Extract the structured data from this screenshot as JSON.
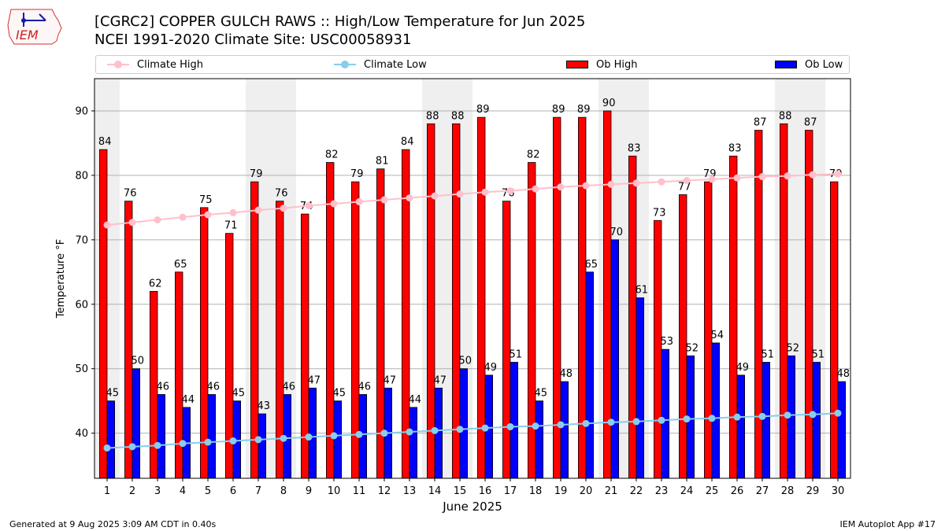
{
  "header": {
    "logo_text": "IEM",
    "title_line1": "[CGRC2] COPPER GULCH RAWS :: High/Low Temperature for Jun 2025",
    "title_line2": "NCEI 1991-2020 Climate Site: USC00058931"
  },
  "legend": {
    "placement": "top, outside plot",
    "items": [
      {
        "label": "Climate High",
        "kind": "line-marker",
        "color": "#ffc0cb"
      },
      {
        "label": "Climate Low",
        "kind": "line-marker",
        "color": "#87ceeb"
      },
      {
        "label": "Ob High",
        "kind": "bar",
        "color": "#ff0000"
      },
      {
        "label": "Ob Low",
        "kind": "bar",
        "color": "#0000ff"
      }
    ]
  },
  "footer": {
    "generated": "Generated at 9 Aug 2025 3:09 AM CDT in 0.40s",
    "app": "IEM Autoplot App #17"
  },
  "chart_data": {
    "type": "bar",
    "title": "[CGRC2] COPPER GULCH RAWS :: High/Low Temperature for Jun 2025",
    "subtitle": "NCEI 1991-2020 Climate Site: USC00058931",
    "xlabel": "June 2025",
    "ylabel": "Temperature °F",
    "ylim": [
      33,
      95
    ],
    "yticks": [
      40,
      50,
      60,
      70,
      80,
      90
    ],
    "grid": "horizontal",
    "weekend_shading_color": "#efefef",
    "weekend_days": [
      1,
      7,
      8,
      14,
      15,
      21,
      22,
      28,
      29
    ],
    "categories": [
      "1",
      "2",
      "3",
      "4",
      "5",
      "6",
      "7",
      "8",
      "9",
      "10",
      "11",
      "12",
      "13",
      "14",
      "15",
      "16",
      "17",
      "18",
      "19",
      "20",
      "21",
      "22",
      "23",
      "24",
      "25",
      "26",
      "27",
      "28",
      "29",
      "30"
    ],
    "series": [
      {
        "name": "Ob High",
        "type": "bar",
        "color": "#ff0000",
        "values": [
          84,
          76,
          62,
          65,
          75,
          71,
          79,
          76,
          74,
          82,
          79,
          81,
          84,
          88,
          88,
          89,
          76,
          82,
          89,
          89,
          90,
          83,
          73,
          77,
          79,
          83,
          87,
          88,
          87,
          79
        ]
      },
      {
        "name": "Ob Low",
        "type": "bar",
        "color": "#0000ff",
        "values": [
          45,
          50,
          46,
          44,
          46,
          45,
          43,
          46,
          47,
          45,
          46,
          47,
          44,
          47,
          50,
          49,
          51,
          45,
          48,
          65,
          70,
          61,
          53,
          52,
          54,
          49,
          51,
          52,
          51,
          48
        ]
      },
      {
        "name": "Climate High",
        "type": "line",
        "color": "#ffc0cb",
        "values": [
          72.3,
          72.7,
          73.1,
          73.5,
          73.9,
          74.2,
          74.6,
          74.9,
          75.3,
          75.6,
          75.9,
          76.2,
          76.5,
          76.8,
          77.1,
          77.4,
          77.6,
          77.9,
          78.2,
          78.4,
          78.6,
          78.8,
          79.0,
          79.2,
          79.4,
          79.6,
          79.8,
          79.9,
          80.1,
          80.2
        ]
      },
      {
        "name": "Climate Low",
        "type": "line",
        "color": "#87ceeb",
        "values": [
          37.7,
          37.9,
          38.1,
          38.4,
          38.6,
          38.8,
          39.0,
          39.2,
          39.4,
          39.6,
          39.8,
          40.0,
          40.2,
          40.4,
          40.6,
          40.8,
          41.0,
          41.1,
          41.3,
          41.5,
          41.7,
          41.8,
          42.0,
          42.2,
          42.3,
          42.5,
          42.6,
          42.8,
          42.9,
          43.1
        ]
      }
    ]
  }
}
